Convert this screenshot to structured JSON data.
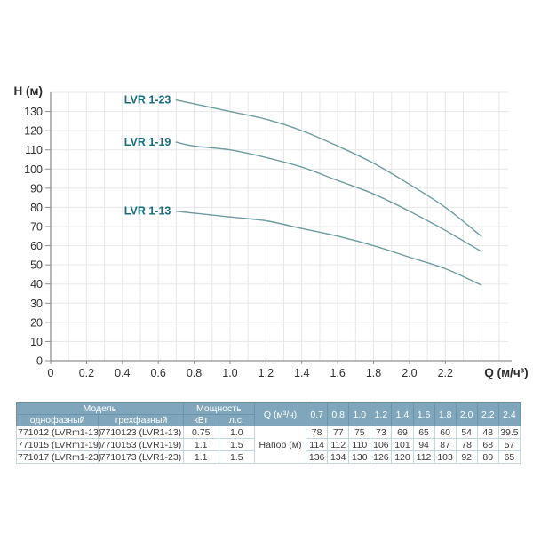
{
  "colors": {
    "curve": "#6e9ca4",
    "series_label": "#196f7e",
    "header_bg": "#7fa6ba",
    "header_border": "#6b93a9",
    "header_text": "#ffffff",
    "body_border": "#c3d5df",
    "body_text": "#3a3a3a",
    "grid": "#e7e7e7",
    "axis": "#8f8f8f",
    "tick_text": "#2f2f2f",
    "axis_title_text": "#2b2b2b"
  },
  "chart_data": {
    "type": "line",
    "title": "",
    "xlabel": "Q (м/ч³)",
    "ylabel": "H (м)",
    "x": [
      0.7,
      0.8,
      1.0,
      1.2,
      1.4,
      1.6,
      1.8,
      2.0,
      2.2,
      2.4
    ],
    "series": [
      {
        "name": "LVR 1-23",
        "values": [
          136,
          134,
          130,
          126,
          120,
          112,
          103,
          92,
          80,
          65
        ]
      },
      {
        "name": "LVR 1-19",
        "values": [
          114,
          112,
          110,
          106,
          101,
          94,
          87,
          78,
          68,
          57
        ]
      },
      {
        "name": "LVR 1-13",
        "values": [
          78,
          77,
          75,
          73,
          69,
          65,
          60,
          54,
          48,
          39.5
        ]
      }
    ],
    "xlim": [
      0,
      2.55
    ],
    "ylim": [
      0,
      140
    ],
    "x_tick_labels": [
      "0",
      "0.2",
      "0.4",
      "0.6",
      "0.8",
      "1.0",
      "1.2",
      "1.4",
      "1.6",
      "1.8",
      "2.0",
      "2.2"
    ],
    "y_tick_labels": [
      "0",
      "10",
      "20",
      "30",
      "40",
      "50",
      "60",
      "70",
      "80",
      "90",
      "100",
      "110",
      "120",
      "130"
    ],
    "x_grid_step": 0.1,
    "x_grid_max": 2.5,
    "y_grid_step": 10,
    "y_grid_max": 140,
    "grid": true,
    "legend_position": "inline-left-of-curves"
  },
  "table": {
    "header": {
      "model_label": "Модель",
      "power_label": "Мощность",
      "q_label": "Q (м³/ч)",
      "single_phase": "однофазный",
      "three_phase": "трехфазный",
      "kw": "кВт",
      "hp": "л.с.",
      "q_values": [
        "0.7",
        "0.8",
        "1.0",
        "1.2",
        "1.4",
        "1.6",
        "1.8",
        "2.0",
        "2.2",
        "2.4"
      ]
    },
    "head_label": "Напор (м)",
    "rows": [
      {
        "single_phase": "771012 (LVRm1-13)",
        "three_phase": "7710123 (LVR1-13)",
        "kw": "0.75",
        "hp": "1.0",
        "head": [
          "78",
          "77",
          "75",
          "73",
          "69",
          "65",
          "60",
          "54",
          "48",
          "39.5"
        ]
      },
      {
        "single_phase": "771015 (LVRm1-19)",
        "three_phase": "7710153 (LVR1-19)",
        "kw": "1.1",
        "hp": "1.5",
        "head": [
          "114",
          "112",
          "110",
          "106",
          "101",
          "94",
          "87",
          "78",
          "68",
          "57"
        ]
      },
      {
        "single_phase": "771017 (LVRm1-23)",
        "three_phase": "7710173 (LVR1-23)",
        "kw": "1.1",
        "hp": "1.5",
        "head": [
          "136",
          "134",
          "130",
          "126",
          "120",
          "112",
          "103",
          "92",
          "80",
          "65"
        ]
      }
    ]
  }
}
